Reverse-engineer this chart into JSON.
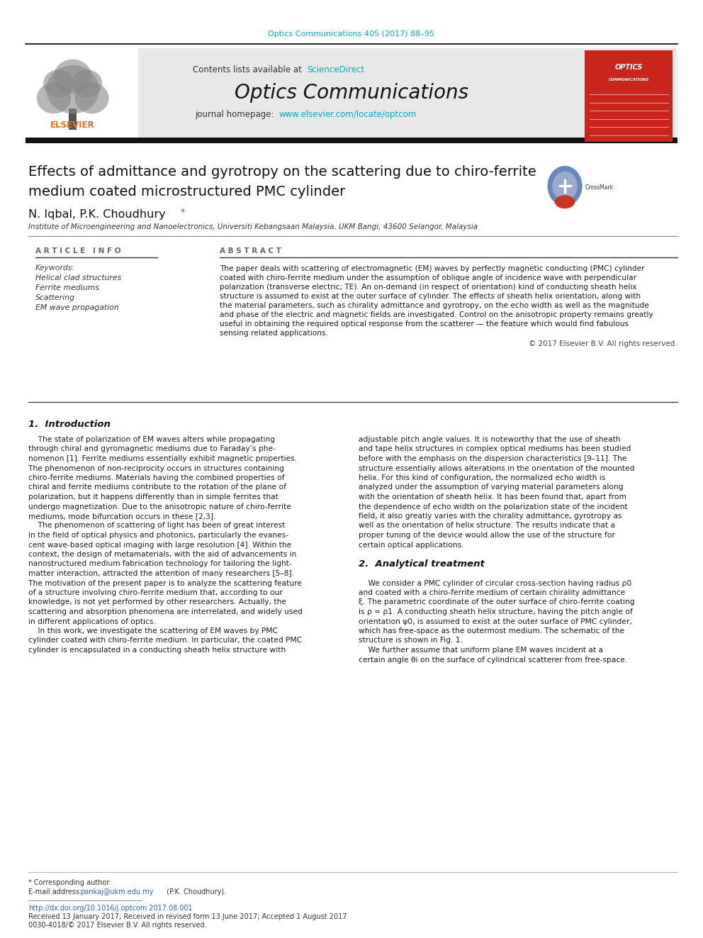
{
  "page_bg": "#ffffff",
  "top_journal_ref": "Optics Communications 405 (2017) 88–95",
  "top_journal_ref_color": "#00aacc",
  "header_bg": "#e8e8e8",
  "header_contents": "Contents lists available at",
  "header_sciencedirect": "ScienceDirect",
  "header_sciencedirect_color": "#00aacc",
  "journal_title": "Optics Communications",
  "journal_homepage_label": "journal homepage:",
  "journal_homepage_url": "www.elsevier.com/locate/optcom",
  "journal_homepage_url_color": "#00aacc",
  "thick_bar_color": "#1a1a1a",
  "paper_title_line1": "Effects of admittance and gyrotropy on the scattering due to chiro-ferrite",
  "paper_title_line2": "medium coated microstructured PMC cylinder",
  "authors": "N. Iqbal, P.K. Choudhury",
  "affiliation": "Institute of Microengineering and Nanoelectronics, Universiti Kebangsaan Malaysia, UKM Bangi, 43600 Selangor, Malaysia",
  "article_info_label": "A R T I C L E   I N F O",
  "abstract_label": "A B S T R A C T",
  "keywords_label": "Keywords:",
  "keywords": [
    "Helical clad structures",
    "Ferrite mediums",
    "Scattering",
    "EM wave propagation"
  ],
  "abstract_lines": [
    "The paper deals with scattering of electromagnetic (EM) waves by perfectly magnetic conducting (PMC) cylinder",
    "coated with chiro-ferrite medium under the assumption of oblique angle of incidence wave with perpendicular",
    "polarization (transverse electric; TE). An on-demand (in respect of orientation) kind of conducting sheath helix",
    "structure is assumed to exist at the outer surface of cylinder. The effects of sheath helix orientation, along with",
    "the material parameters, such as chirality admittance and gyrotropy, on the echo width as well as the magnitude",
    "and phase of the electric and magnetic fields are investigated. Control on the anisotropic property remains greatly",
    "useful in obtaining the required optical response from the scatterer — the feature which would find fabulous",
    "sensing related applications."
  ],
  "copyright": "© 2017 Elsevier B.V. All rights reserved.",
  "section1_title": "1.  Introduction",
  "intro_col1": [
    "    The state of polarization of EM waves alters while propagating",
    "through chiral and gyromagnetic mediums due to Faraday’s phe-",
    "nomenon [1]. Ferrite mediums essentially exhibit magnetic properties.",
    "The phenomenon of non-reciprocity occurs in structures containing",
    "chiro-ferrite mediums. Materials having the combined properties of",
    "chiral and ferrite mediums contribute to the rotation of the plane of",
    "polarization, but it happens differently than in simple ferrites that",
    "undergo magnetization. Due to the anisotropic nature of chiro-ferrite",
    "mediums, mode bifurcation occurs in these [2,3].",
    "    The phenomenon of scattering of light has been of great interest",
    "in the field of optical physics and photonics, particularly the evanes-",
    "cent wave-based optical imaging with large resolution [4]. Within the",
    "context, the design of metamaterials, with the aid of advancements in",
    "nanostructured medium fabrication technology for tailoring the light-",
    "matter interaction, attracted the attention of many researchers [5–8].",
    "The motivation of the present paper is to analyze the scattering feature",
    "of a structure involving chiro-ferrite medium that, according to our",
    "knowledge, is not yet performed by other researchers. Actually, the",
    "scattering and absorption phenomena are interrelated, and widely used",
    "in different applications of optics.",
    "    In this work, we investigate the scattering of EM waves by PMC",
    "cylinder coated with chiro-ferrite medium. In particular, the coated PMC",
    "cylinder is encapsulated in a conducting sheath helix structure with"
  ],
  "intro_col2": [
    "adjustable pitch angle values. It is noteworthy that the use of sheath",
    "and tape helix structures in complex optical mediums has been studied",
    "before with the emphasis on the dispersion characteristics [9–11]. The",
    "structure essentially allows alterations in the orientation of the mounted",
    "helix. For this kind of configuration, the normalized echo width is",
    "analyzed under the assumption of varying material parameters along",
    "with the orientation of sheath helix. It has been found that, apart from",
    "the dependence of echo width on the polarization state of the incident",
    "field, it also greatly varies with the chirality admittance, gyrotropy as",
    "well as the orientation of helix structure. The results indicate that a",
    "proper tuning of the device would allow the use of the structure for",
    "certain optical applications.",
    "",
    "2.  Analytical treatment",
    "",
    "    We consider a PMC cylinder of circular cross-section having radius ρ0",
    "and coated with a chiro-ferrite medium of certain chirality admittance",
    "ξ. The parametric coordinate of the outer surface of chiro-ferrite coating",
    "is ρ = ρ1. A conducting sheath helix structure, having the pitch angle of",
    "orientation ψ0, is assumed to exist at the outer surface of PMC cylinder,",
    "which has free-space as the outermost medium. The schematic of the",
    "structure is shown in Fig. 1.",
    "    We further assume that uniform plane EM waves incident at a",
    "certain angle θi on the surface of cylindrical scatterer from free-space."
  ],
  "footer_star_note": "* Corresponding author.",
  "footer_email_label": "E-mail address:",
  "footer_email": "pankaj@ukm.edu.my",
  "footer_email_suffix": " (P.K. Choudhury).",
  "footer_doi": "http://dx.doi.org/10.1016/j.optcom.2017.08.001",
  "footer_received": "Received 13 January 2017; Received in revised form 13 June 2017; Accepted 1 August 2017",
  "footer_issn": "0030-4018/© 2017 Elsevier B.V. All rights reserved."
}
